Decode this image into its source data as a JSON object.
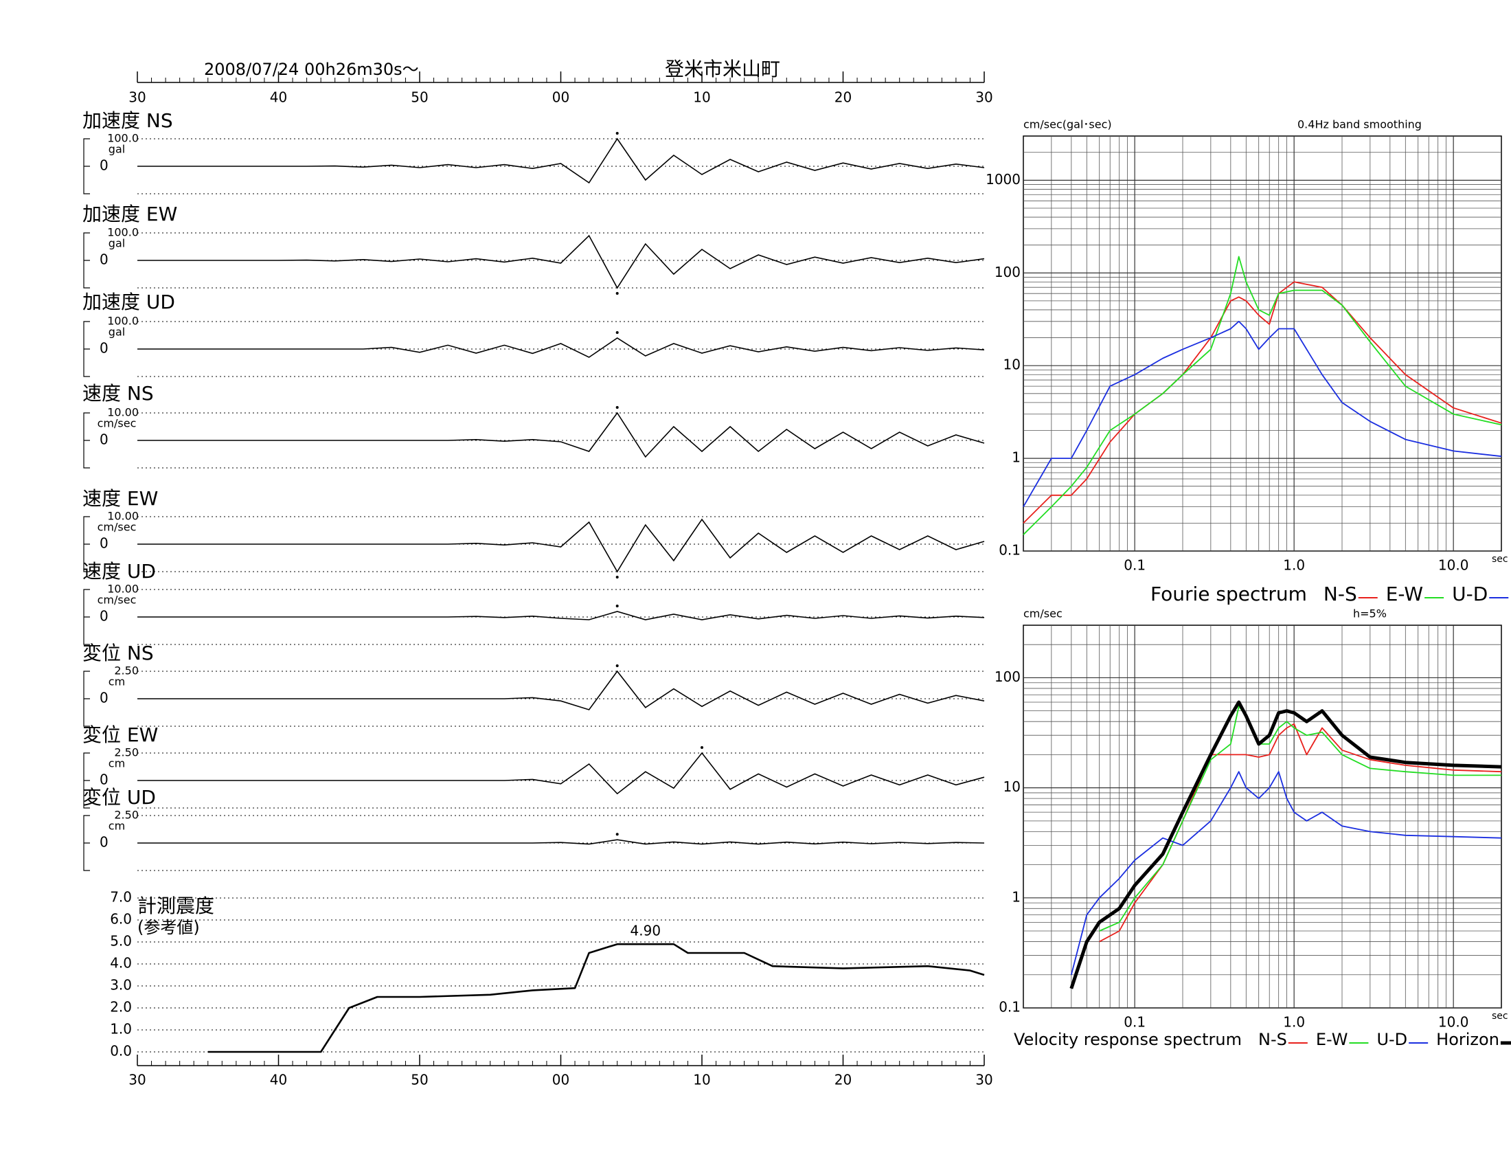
{
  "chart_data": [
    {
      "type": "waveform",
      "date": "2008/07/24  00h26m30s〜",
      "location": "登米市米山町",
      "xlim": [
        30,
        90
      ],
      "xticks": [
        30,
        40,
        50,
        {
          "value": 60,
          "label": "00"
        },
        {
          "value": 70,
          "label": "10"
        },
        {
          "value": 80,
          "label": "20"
        },
        {
          "value": 90,
          "label": "30"
        }
      ],
      "x": [
        30,
        32,
        34,
        36,
        38,
        40,
        42,
        44,
        46,
        48,
        50,
        52,
        54,
        56,
        58,
        60,
        62,
        64,
        66,
        68,
        70,
        72,
        74,
        76,
        78,
        80,
        82,
        84,
        86,
        88,
        90
      ],
      "traces": [
        {
          "name": "加速度 NS",
          "unit": "gal",
          "ylim": [
            -100,
            100
          ],
          "yticks": [
            {
              "value": 100,
              "label": "100.0"
            },
            0
          ],
          "values": [
            0,
            0,
            0,
            0,
            0,
            0,
            0,
            1,
            -3,
            4,
            -5,
            6,
            -5,
            6,
            -8,
            10,
            -60,
            100,
            -50,
            40,
            -30,
            25,
            -20,
            15,
            -15,
            12,
            -10,
            10,
            -8,
            8,
            -5
          ]
        },
        {
          "name": "加速度 EW",
          "unit": "gal",
          "ylim": [
            -100,
            100
          ],
          "yticks": [
            {
              "value": 100,
              "label": "100.0"
            },
            0
          ],
          "values": [
            0,
            0,
            0,
            0,
            0,
            0,
            1,
            -2,
            3,
            -4,
            5,
            -5,
            6,
            -6,
            8,
            -10,
            90,
            -100,
            60,
            -50,
            40,
            -30,
            20,
            -15,
            12,
            -10,
            10,
            -8,
            8,
            -8,
            6
          ]
        },
        {
          "name": "加速度 UD",
          "unit": "gal",
          "ylim": [
            -100,
            100
          ],
          "yticks": [
            {
              "value": 100,
              "label": "100.0"
            },
            0
          ],
          "values": [
            0,
            0,
            0,
            0,
            0,
            0,
            0,
            0,
            0,
            6,
            -12,
            14,
            -15,
            14,
            -16,
            20,
            -30,
            40,
            -25,
            20,
            -15,
            12,
            -10,
            8,
            -8,
            6,
            -6,
            5,
            -5,
            4,
            -3
          ]
        },
        {
          "name": "速度 NS",
          "unit": "cm/sec",
          "ylim": [
            -10,
            10
          ],
          "yticks": [
            {
              "value": 10,
              "label": "10.00"
            },
            0
          ],
          "values": [
            0,
            0,
            0,
            0,
            0,
            0,
            0,
            0,
            0,
            0,
            0,
            0,
            0.3,
            -0.3,
            0.3,
            -0.5,
            -4,
            10,
            -6,
            5,
            -4,
            5,
            -4,
            4,
            -3,
            3,
            -3,
            3,
            -2,
            2,
            -1
          ]
        },
        {
          "name": "速度 EW",
          "unit": "cm/sec",
          "ylim": [
            -10,
            10
          ],
          "yticks": [
            {
              "value": 10,
              "label": "10.00"
            },
            0
          ],
          "values": [
            0,
            0,
            0,
            0,
            0,
            0,
            0,
            0,
            0,
            0,
            0,
            0,
            0.3,
            -0.3,
            0.5,
            -1,
            8,
            -10,
            7,
            -6,
            9,
            -5,
            4,
            -3,
            3,
            -3,
            3,
            -2,
            3,
            -2,
            1
          ]
        },
        {
          "name": "速度 UD",
          "unit": "cm/sec",
          "ylim": [
            -10,
            10
          ],
          "yticks": [
            {
              "value": 10,
              "label": "10.00"
            },
            0
          ],
          "values": [
            0,
            0,
            0,
            0,
            0,
            0,
            0,
            0,
            0,
            0,
            0,
            0,
            0.2,
            -0.2,
            0.3,
            -0.5,
            -1,
            2,
            -1,
            1,
            -1,
            0.8,
            -0.7,
            0.6,
            -0.5,
            0.5,
            -0.5,
            0.4,
            -0.4,
            0.3,
            -0.2
          ]
        },
        {
          "name": "変位 NS",
          "unit": "cm",
          "ylim": [
            -2.5,
            2.5
          ],
          "yticks": [
            {
              "value": 2.5,
              "label": "2.50"
            },
            0
          ],
          "values": [
            0,
            0,
            0,
            0,
            0,
            0,
            0,
            0,
            0,
            0,
            0,
            0,
            0,
            0,
            0.1,
            -0.2,
            -1.0,
            2.5,
            -0.8,
            0.9,
            -0.7,
            0.7,
            -0.6,
            0.6,
            -0.5,
            0.5,
            -0.5,
            0.4,
            -0.4,
            0.3,
            -0.2
          ]
        },
        {
          "name": "変位 EW",
          "unit": "cm",
          "ylim": [
            -2.5,
            2.5
          ],
          "yticks": [
            {
              "value": 2.5,
              "label": "2.50"
            },
            0
          ],
          "values": [
            0,
            0,
            0,
            0,
            0,
            0,
            0,
            0,
            0,
            0,
            0,
            0,
            0,
            0,
            0.1,
            -0.3,
            1.5,
            -1.2,
            0.8,
            -0.7,
            2.5,
            -0.8,
            0.6,
            -0.6,
            0.6,
            -0.5,
            0.5,
            -0.4,
            0.5,
            -0.4,
            0.3
          ]
        },
        {
          "name": "変位 UD",
          "unit": "cm",
          "ylim": [
            -2.5,
            2.5
          ],
          "yticks": [
            {
              "value": 2.5,
              "label": "2.50"
            },
            0
          ],
          "values": [
            0,
            0,
            0,
            0,
            0,
            0,
            0,
            0,
            0,
            0,
            0,
            0,
            0,
            0,
            0,
            0.05,
            -0.1,
            0.3,
            -0.1,
            0.1,
            -0.1,
            0.1,
            -0.1,
            0.08,
            -0.08,
            0.08,
            -0.06,
            0.06,
            -0.05,
            0.05,
            0
          ]
        }
      ]
    },
    {
      "type": "line",
      "title": "計測震度",
      "subtitle": "(参考値)",
      "annotation": "4.90",
      "xlim": [
        30,
        90
      ],
      "xticks": [
        30,
        40,
        50,
        {
          "value": 60,
          "label": "00"
        },
        {
          "value": 70,
          "label": "10"
        },
        {
          "value": 80,
          "label": "20"
        },
        {
          "value": 90,
          "label": "30"
        }
      ],
      "ylim": [
        0,
        7
      ],
      "yticks": [
        {
          "value": 0,
          "label": "0.0"
        },
        {
          "value": 1,
          "label": "1.0"
        },
        {
          "value": 2,
          "label": "2.0"
        },
        {
          "value": 3,
          "label": "3.0"
        },
        {
          "value": 4,
          "label": "4.0"
        },
        {
          "value": 5,
          "label": "5.0"
        },
        {
          "value": 6,
          "label": "6.0"
        },
        {
          "value": 7,
          "label": "7.0"
        }
      ],
      "x": [
        35,
        43,
        44,
        45,
        47,
        50,
        55,
        58,
        61,
        62,
        64,
        68,
        69,
        73,
        75,
        80,
        86,
        89,
        90
      ],
      "series": [
        {
          "color": "#000000",
          "values": [
            0,
            0,
            1.0,
            2.0,
            2.5,
            2.5,
            2.6,
            2.8,
            2.9,
            4.5,
            4.9,
            4.9,
            4.5,
            4.5,
            3.9,
            3.8,
            3.9,
            3.7,
            3.5
          ]
        }
      ]
    },
    {
      "type": "line",
      "xlog": true,
      "ylog": true,
      "grid": true,
      "ylabel": "cm/sec(gal･sec)",
      "note": "0.4Hz band smoothing",
      "xlabel": "sec",
      "legend_title": "Fourie spectrum",
      "xlim": [
        0.02,
        20
      ],
      "xticks": [
        0.1,
        {
          "value": 1,
          "label": "1.0"
        },
        {
          "value": 10,
          "label": "10.0"
        }
      ],
      "ylim": [
        0.1,
        3000
      ],
      "yticks": [
        0.1,
        1,
        10,
        100,
        1000
      ],
      "x": [
        0.02,
        0.03,
        0.04,
        0.05,
        0.07,
        0.1,
        0.15,
        0.2,
        0.3,
        0.4,
        0.45,
        0.5,
        0.6,
        0.7,
        0.8,
        1.0,
        1.5,
        2,
        3,
        5,
        10,
        20
      ],
      "series": [
        {
          "name": "N-S",
          "color": "#e8201c",
          "values": [
            0.2,
            0.4,
            0.4,
            0.6,
            1.5,
            3,
            5,
            8,
            20,
            50,
            55,
            50,
            35,
            28,
            60,
            80,
            70,
            45,
            20,
            8,
            3.5,
            2.4
          ]
        },
        {
          "name": "E-W",
          "color": "#22dd22",
          "values": [
            0.15,
            0.3,
            0.5,
            0.8,
            2,
            3,
            5,
            8,
            15,
            60,
            150,
            80,
            40,
            35,
            60,
            65,
            65,
            45,
            18,
            6,
            3,
            2.3
          ]
        },
        {
          "name": "U-D",
          "color": "#1a2ee0",
          "values": [
            0.3,
            1,
            1,
            2,
            6,
            8,
            12,
            15,
            20,
            25,
            30,
            25,
            15,
            20,
            25,
            25,
            8,
            4,
            2.5,
            1.6,
            1.2,
            1.05
          ]
        }
      ]
    },
    {
      "type": "line",
      "xlog": true,
      "ylog": true,
      "grid": true,
      "ylabel": "cm/sec",
      "note": "h=5%",
      "xlabel": "sec",
      "legend_title": "Velocity response spectrum",
      "xlim": [
        0.02,
        20
      ],
      "xticks": [
        0.1,
        {
          "value": 1,
          "label": "1.0"
        },
        {
          "value": 10,
          "label": "10.0"
        }
      ],
      "ylim": [
        0.1,
        300
      ],
      "yticks": [
        0.1,
        1,
        10,
        100
      ],
      "x": [
        0.04,
        0.05,
        0.06,
        0.08,
        0.1,
        0.15,
        0.2,
        0.3,
        0.4,
        0.45,
        0.5,
        0.6,
        0.7,
        0.8,
        0.9,
        1.0,
        1.2,
        1.5,
        2,
        3,
        5,
        10,
        20
      ],
      "series": [
        {
          "name": "N-S",
          "color": "#e8201c",
          "values": [
            null,
            null,
            0.4,
            0.5,
            0.9,
            2,
            5,
            20,
            20,
            20,
            20,
            19,
            20,
            30,
            35,
            38,
            20,
            35,
            22,
            18,
            16,
            14.5,
            14
          ]
        },
        {
          "name": "E-W",
          "color": "#22dd22",
          "values": [
            null,
            null,
            0.5,
            0.6,
            1,
            2,
            5,
            18,
            25,
            55,
            45,
            25,
            25,
            35,
            40,
            35,
            30,
            32,
            20,
            15,
            14,
            13,
            13
          ]
        },
        {
          "name": "U-D",
          "color": "#1a2ee0",
          "values": [
            0.2,
            0.7,
            1,
            1.5,
            2.2,
            3.5,
            3,
            5,
            10,
            14,
            10,
            8,
            10,
            14,
            8,
            6,
            5,
            6,
            4.5,
            4,
            3.7,
            3.6,
            3.5
          ]
        },
        {
          "name": "Horizon",
          "color": "#000000",
          "width": 5,
          "values": [
            0.15,
            0.4,
            0.6,
            0.8,
            1.3,
            2.5,
            6,
            20,
            45,
            60,
            45,
            25,
            30,
            48,
            50,
            48,
            40,
            50,
            30,
            19,
            17,
            16,
            15.5
          ]
        }
      ]
    }
  ]
}
